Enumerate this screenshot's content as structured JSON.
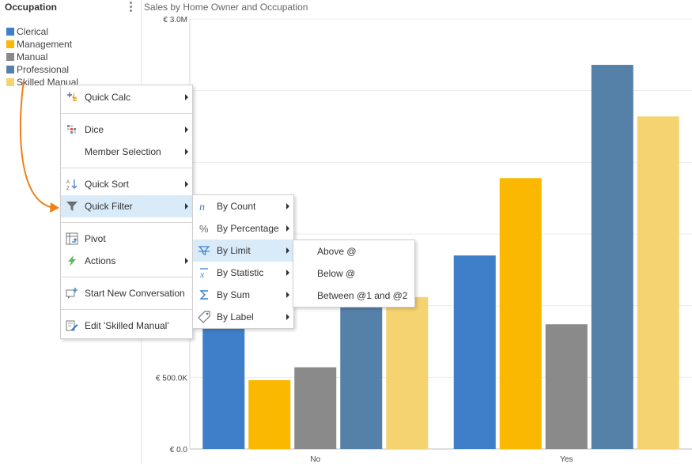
{
  "legend": {
    "title": "Occupation",
    "items": [
      {
        "label": "Clerical",
        "color": "#3f7fc9"
      },
      {
        "label": "Management",
        "color": "#fbb800"
      },
      {
        "label": "Manual",
        "color": "#8a8a8a"
      },
      {
        "label": "Professional",
        "color": "#5580a8"
      },
      {
        "label": "Skilled Manual",
        "color": "#f4d370"
      }
    ]
  },
  "chart_title": "Sales by Home Owner and Occupation",
  "chart_data": {
    "type": "bar",
    "title": "Sales by Home Owner and Occupation",
    "xlabel": "",
    "ylabel": "",
    "categories": [
      "No",
      "Yes"
    ],
    "series": [
      {
        "name": "Clerical",
        "values": [
          1000000,
          1350000
        ]
      },
      {
        "name": "Management",
        "values": [
          480000,
          1890000
        ]
      },
      {
        "name": "Manual",
        "values": [
          570000,
          870000
        ]
      },
      {
        "name": "Professional",
        "values": [
          1050000,
          2680000
        ]
      },
      {
        "name": "Skilled Manual",
        "values": [
          1060000,
          2320000
        ]
      }
    ],
    "ylim": [
      0,
      3000000
    ],
    "yticks": [
      {
        "value": 0,
        "label": "€ 0.0"
      },
      {
        "value": 500000,
        "label": "€ 500.0K"
      },
      {
        "value": 3000000,
        "label": "€ 3.0M"
      }
    ],
    "grid": true,
    "legend_position": "left"
  },
  "context_menu": {
    "items": [
      {
        "label": "Quick Calc",
        "icon": "quick-calc-icon",
        "submenu": true
      },
      {
        "label": "Dice",
        "icon": "dice-icon",
        "submenu": true
      },
      {
        "label": "Member Selection",
        "icon": "",
        "submenu": true
      },
      {
        "label": "Quick Sort",
        "icon": "sort-az-icon",
        "submenu": true
      },
      {
        "label": "Quick Filter",
        "icon": "filter-icon",
        "submenu": true
      },
      {
        "label": "Pivot",
        "icon": "pivot-icon",
        "submenu": false
      },
      {
        "label": "Actions",
        "icon": "lightning-icon",
        "submenu": true
      },
      {
        "label": "Start New Conversation",
        "icon": "new-conversation-icon",
        "submenu": false
      },
      {
        "label": "Edit 'Skilled Manual'",
        "icon": "edit-icon",
        "submenu": false
      }
    ]
  },
  "filter_menu": {
    "items": [
      {
        "label": "By Count",
        "icon": "count-icon"
      },
      {
        "label": "By Percentage",
        "icon": "percentage-icon"
      },
      {
        "label": "By Limit",
        "icon": "limit-icon"
      },
      {
        "label": "By Statistic",
        "icon": "statistic-icon"
      },
      {
        "label": "By Sum",
        "icon": "sum-icon"
      },
      {
        "label": "By Label",
        "icon": "label-tag-icon"
      }
    ]
  },
  "limit_menu": {
    "items": [
      {
        "label": "Above @"
      },
      {
        "label": "Below @"
      },
      {
        "label": "Between @1 and @2"
      }
    ]
  }
}
